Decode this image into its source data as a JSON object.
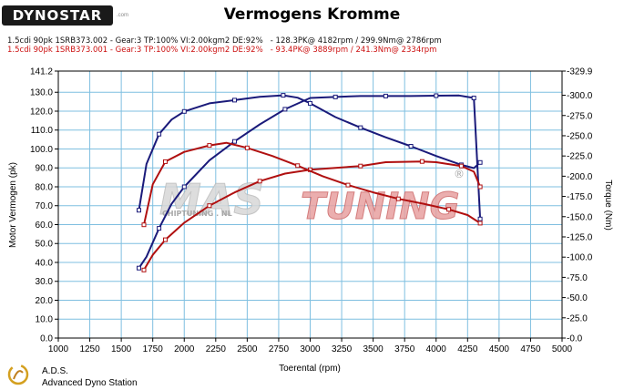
{
  "header": {
    "logo_text": "DYNOSTAR",
    "logo_sub": ".com",
    "title": "Vermogens Kromme"
  },
  "runs": [
    {
      "label": "1.5cdi 90pk 1SRB373.002 - Gear:3 TP:100% VI:2.00kgm2 DE:92%   - 128.3PK@ 4182rpm / 299.9Nm@ 2786rpm",
      "color": "#111111"
    },
    {
      "label": "1.5cdi 90pk 1SRB373.001 - Gear:3 TP:100% VI:2.00kgm2 DE:92%   - 93.4PK@ 3889rpm / 241.3Nm@ 2334rpm",
      "color": "#cc1010"
    }
  ],
  "footer": {
    "brand": "A.D.S.",
    "description": "Advanced Dyno Station"
  },
  "watermark": {
    "text_a": "MAS",
    "text_b": "TUNING",
    "sub": "CHIPTUNING . NL",
    "reg": "®"
  },
  "chart_data": {
    "type": "line",
    "xlabel": "Toerental (rpm)",
    "ylabel": "Motor Vermogen (pk)",
    "y2label": "Torque (Nm)",
    "xlim": [
      1000,
      5000
    ],
    "ylim": [
      0,
      141.2
    ],
    "y2lim": [
      0,
      329.9
    ],
    "x_ticks": [
      "1000",
      "1250",
      "1500",
      "1750",
      "2000",
      "2250",
      "2500",
      "2750",
      "3000",
      "3250",
      "3500",
      "3750",
      "4000",
      "4250",
      "4500",
      "4750",
      "5000"
    ],
    "y_ticks": [
      "0.0",
      "10.0",
      "20.0",
      "30.0",
      "40.0",
      "50.0",
      "60.0",
      "70.0",
      "80.0",
      "90.0",
      "100.0",
      "110.0",
      "120.0",
      "130.0",
      "141.2"
    ],
    "y2_ticks": [
      "-0.0",
      "-25.0",
      "-50.0",
      "-75.0",
      "-100.0",
      "-125.0",
      "-150.0",
      "-175.0",
      "-200.0",
      "-225.0",
      "-250.0",
      "-275.0",
      "-300.0",
      "-329.9"
    ],
    "grid": true,
    "series": [
      {
        "name": "1.5cdi 90pk 1SRB373.002",
        "kind": "power",
        "axis": "left",
        "color": "#1a1a7a",
        "x": [
          1640,
          1700,
          1800,
          1900,
          2000,
          2200,
          2400,
          2600,
          2800,
          3000,
          3200,
          3400,
          3600,
          3800,
          4000,
          4182,
          4300,
          4350
        ],
        "y": [
          37,
          43,
          58,
          71,
          80,
          94,
          104,
          113,
          121,
          127,
          127.5,
          128,
          128,
          128,
          128.2,
          128.3,
          127,
          63
        ]
      },
      {
        "name": "1.5cdi 90pk 1SRB373.002",
        "kind": "torque",
        "axis": "right",
        "color": "#1a1a7a",
        "x": [
          1640,
          1700,
          1800,
          1900,
          2000,
          2200,
          2400,
          2600,
          2786,
          2900,
          3000,
          3200,
          3400,
          3600,
          3800,
          4000,
          4200,
          4300,
          4350
        ],
        "y": [
          158,
          215,
          252,
          270,
          280,
          290,
          294,
          298,
          299.9,
          297,
          290,
          273,
          260,
          248,
          237,
          225,
          214,
          210,
          217
        ]
      },
      {
        "name": "1.5cdi 90pk 1SRB373.001",
        "kind": "power",
        "axis": "left",
        "color": "#b01010",
        "x": [
          1680,
          1750,
          1850,
          2000,
          2200,
          2400,
          2600,
          2800,
          3000,
          3200,
          3400,
          3600,
          3889,
          4000,
          4200,
          4300,
          4350
        ],
        "y": [
          36,
          44,
          52,
          61,
          70,
          77,
          83,
          87,
          89,
          90,
          91,
          93,
          93.4,
          93,
          91,
          88,
          80
        ]
      },
      {
        "name": "1.5cdi 90pk 1SRB373.001",
        "kind": "torque",
        "axis": "right",
        "color": "#b01010",
        "x": [
          1680,
          1750,
          1850,
          2000,
          2200,
          2334,
          2500,
          2700,
          2900,
          3100,
          3300,
          3500,
          3700,
          3900,
          4100,
          4250,
          4350
        ],
        "y": [
          140,
          190,
          218,
          230,
          238,
          241.3,
          235,
          225,
          213,
          200,
          189,
          180,
          172,
          166,
          159,
          152,
          142
        ]
      }
    ]
  }
}
